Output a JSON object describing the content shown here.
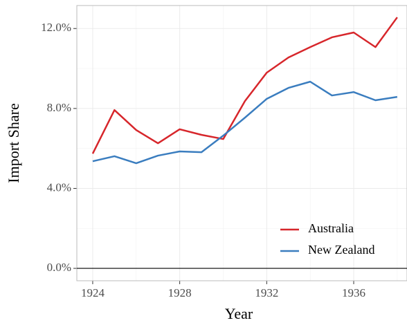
{
  "chart_data": {
    "type": "line",
    "x_label": "Year",
    "y_label": "Import Share",
    "x": [
      1924,
      1925,
      1926,
      1927,
      1928,
      1929,
      1930,
      1931,
      1932,
      1933,
      1934,
      1935,
      1936,
      1937,
      1938
    ],
    "series": [
      {
        "name": "Australia",
        "color": "#d7262b",
        "values": [
          5.74,
          7.92,
          6.92,
          6.26,
          6.96,
          6.68,
          6.47,
          8.37,
          9.79,
          10.55,
          11.07,
          11.56,
          11.8,
          11.07,
          12.56
        ]
      },
      {
        "name": "New Zealand",
        "color": "#3a7dbf",
        "values": [
          5.36,
          5.61,
          5.26,
          5.64,
          5.85,
          5.81,
          6.64,
          7.54,
          8.48,
          9.03,
          9.34,
          8.65,
          8.82,
          8.41,
          8.58
        ]
      }
    ],
    "xlim": [
      1923.27,
      1938.45
    ],
    "xticks": [
      1924,
      1928,
      1932,
      1936
    ],
    "ylim": [
      -0.62,
      13.15
    ],
    "yticks": [
      {
        "value": 0,
        "label": "0.0%"
      },
      {
        "value": 4,
        "label": "4.0%"
      },
      {
        "value": 8,
        "label": "8.0%"
      },
      {
        "value": 12,
        "label": "12.0%"
      }
    ],
    "reference_line": 0,
    "grid": true,
    "legend": "bottom-right"
  }
}
